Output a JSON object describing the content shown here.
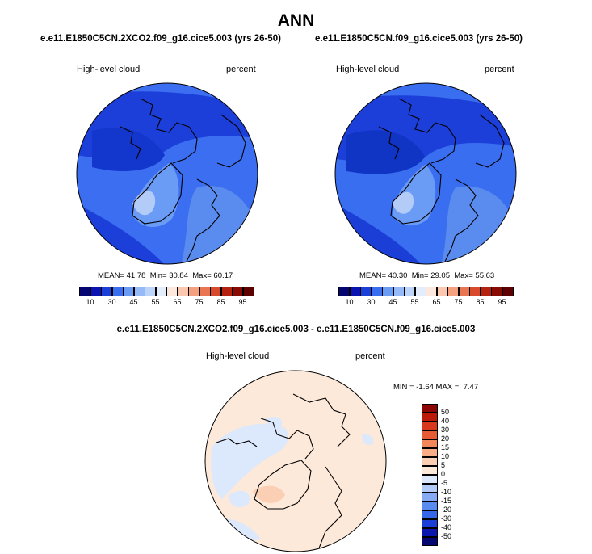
{
  "page": {
    "season": "ANN"
  },
  "panels": [
    {
      "title": "e.e11.E1850C5CN.2XCO2.f09_g16.cice5.003 (yrs 26-50)",
      "left_label": "High-level cloud",
      "right_label": "percent",
      "stats": {
        "mean_label": "MEAN=",
        "mean": "41.78",
        "min_label": "Min=",
        "min": "30.84",
        "max_label": "Max=",
        "max": "60.17"
      }
    },
    {
      "title": "e.e11.E1850C5CN.f09_g16.cice5.003 (yrs 26-50)",
      "left_label": "High-level cloud",
      "right_label": "percent",
      "stats": {
        "mean_label": "MEAN=",
        "mean": "40.30",
        "min_label": "Min=",
        "min": "29.05",
        "max_label": "Max=",
        "max": "55.63"
      }
    },
    {
      "title": "e.e11.E1850C5CN.2XCO2.f09_g16.cice5.003 - e.e11.E1850C5CN.f09_g16.cice5.003",
      "left_label": "High-level cloud",
      "right_label": "percent",
      "stats": {
        "min_label": "MIN =",
        "min": "-1.64",
        "max_label": "MAX =",
        "max": "7.47"
      }
    }
  ],
  "chart_data": [
    {
      "type": "heatmap",
      "projection": "north-polar-stereographic",
      "title": "e.e11.E1850C5CN.2XCO2.f09_g16.cice5.003 (yrs 26-50)",
      "variable": "High-level cloud",
      "units": "percent",
      "mean": 41.78,
      "min": 30.84,
      "max": 60.17,
      "colorbar": {
        "orientation": "horizontal",
        "levels": [
          10,
          20,
          30,
          40,
          45,
          50,
          55,
          60,
          65,
          70,
          75,
          80,
          85,
          90,
          95
        ],
        "tick_labels": [
          "10",
          "30",
          "45",
          "55",
          "65",
          "75",
          "85",
          "95"
        ],
        "colors": [
          "#060672",
          "#0b13b3",
          "#1c3fd9",
          "#3a6ef0",
          "#6a9bf5",
          "#95baf7",
          "#bcd4fa",
          "#e3edfc",
          "#fde8dd",
          "#fbc7ae",
          "#f5a07f",
          "#ea7552",
          "#d94a2c",
          "#b52210",
          "#8a0a04",
          "#5e0000"
        ]
      }
    },
    {
      "type": "heatmap",
      "projection": "north-polar-stereographic",
      "title": "e.e11.E1850C5CN.f09_g16.cice5.003 (yrs 26-50)",
      "variable": "High-level cloud",
      "units": "percent",
      "mean": 40.3,
      "min": 29.05,
      "max": 55.63,
      "colorbar": {
        "orientation": "horizontal",
        "levels": [
          10,
          20,
          30,
          40,
          45,
          50,
          55,
          60,
          65,
          70,
          75,
          80,
          85,
          90,
          95
        ],
        "tick_labels": [
          "10",
          "30",
          "45",
          "55",
          "65",
          "75",
          "85",
          "95"
        ],
        "colors": [
          "#060672",
          "#0b13b3",
          "#1c3fd9",
          "#3a6ef0",
          "#6a9bf5",
          "#95baf7",
          "#bcd4fa",
          "#e3edfc",
          "#fde8dd",
          "#fbc7ae",
          "#f5a07f",
          "#ea7552",
          "#d94a2c",
          "#b52210",
          "#8a0a04",
          "#5e0000"
        ]
      }
    },
    {
      "type": "heatmap",
      "projection": "north-polar-stereographic",
      "title": "e.e11.E1850C5CN.2XCO2.f09_g16.cice5.003 - e.e11.E1850C5CN.f09_g16.cice5.003",
      "variable": "High-level cloud",
      "units": "percent",
      "min": -1.64,
      "max": 7.47,
      "colorbar": {
        "orientation": "vertical",
        "levels": [
          -50,
          -40,
          -30,
          -20,
          -15,
          -10,
          -5,
          0,
          5,
          10,
          15,
          20,
          30,
          40,
          50
        ],
        "tick_labels": [
          "-50",
          "-40",
          "-30",
          "-20",
          "-15",
          "-10",
          "-5",
          "0",
          "5",
          "10",
          "15",
          "20",
          "30",
          "40",
          "50"
        ],
        "colors": [
          "#060670",
          "#0a16ad",
          "#1a3ed6",
          "#3567e8",
          "#5a8bef",
          "#86aaf3",
          "#b3cbf7",
          "#dce8fb",
          "#fde9da",
          "#fbcfb4",
          "#f8ad86",
          "#f2865b",
          "#e75c36",
          "#d8391c",
          "#bb1a08",
          "#8c0500"
        ]
      }
    }
  ]
}
